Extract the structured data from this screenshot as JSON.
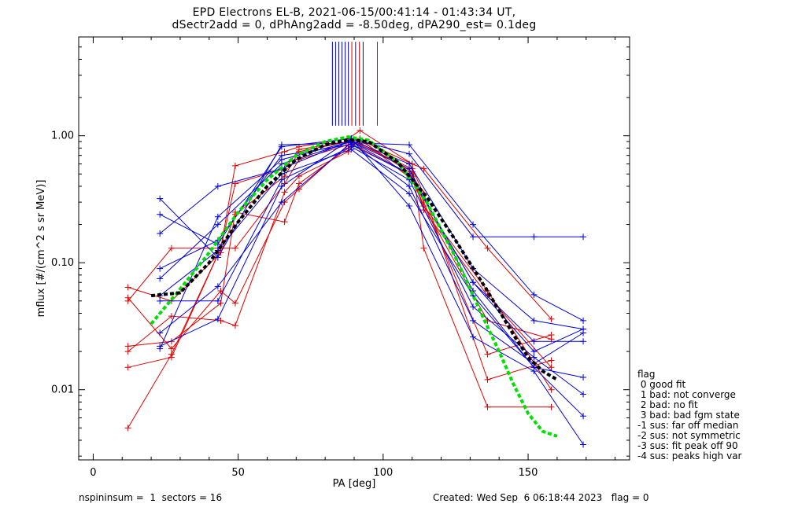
{
  "chart_data": {
    "type": "line",
    "title_line1": "EPD Electrons EL-B, 2021-06-15/00:41:14 - 01:43:34 UT,",
    "title_line2": "dSectr2add = 0, dPhAng2add = -8.50deg, dPA290_est=   0.1deg",
    "xlabel": "PA [deg]",
    "ylabel": "mflux [#/(cm^2 s sr MeV)]",
    "xlim": [
      -5,
      185
    ],
    "ylim": [
      0.0028,
      6.0
    ],
    "yscale": "log",
    "xticks": [
      0,
      50,
      100,
      150
    ],
    "xtick_labels": [
      "0",
      "50",
      "100",
      "150"
    ],
    "yticks": [
      0.01,
      0.1,
      1.0
    ],
    "ytick_labels": [
      "0.01",
      "0.10",
      "1.00"
    ],
    "colors": {
      "red": "#e00000",
      "blue": "#0000dd",
      "green": "#00e000",
      "black": "#000000"
    },
    "series": [
      {
        "color": "red",
        "x": [
          12,
          27,
          44,
          49,
          66,
          71,
          88,
          92,
          110,
          114,
          136,
          158
        ],
        "y": [
          0.005,
          0.019,
          0.13,
          0.58,
          0.75,
          0.82,
          0.95,
          1.1,
          0.6,
          0.13,
          0.0073,
          0.0073
        ]
      },
      {
        "color": "red",
        "x": [
          12,
          27,
          44,
          49,
          66,
          71,
          88,
          92,
          110,
          114,
          136,
          158
        ],
        "y": [
          0.015,
          0.018,
          0.13,
          0.42,
          0.55,
          0.78,
          0.9,
          0.85,
          0.55,
          0.35,
          0.012,
          0.017
        ]
      },
      {
        "color": "red",
        "x": [
          12,
          27,
          44,
          49,
          66,
          71,
          88,
          92,
          110,
          114,
          136,
          158
        ],
        "y": [
          0.022,
          0.024,
          0.048,
          0.25,
          0.21,
          0.42,
          0.8,
          0.92,
          0.5,
          0.3,
          0.019,
          0.027
        ]
      },
      {
        "color": "red",
        "x": [
          12,
          27,
          44,
          49,
          66,
          71,
          88,
          92,
          110,
          114,
          136,
          158
        ],
        "y": [
          0.02,
          0.038,
          0.035,
          0.032,
          0.36,
          0.48,
          0.75,
          0.95,
          0.45,
          0.28,
          0.035,
          0.025
        ]
      },
      {
        "color": "red",
        "x": [
          12,
          27,
          44,
          49,
          66,
          71,
          88,
          92,
          110,
          114,
          136,
          158
        ],
        "y": [
          0.05,
          0.13,
          0.13,
          0.13,
          0.42,
          0.65,
          0.85,
          0.88,
          0.52,
          0.26,
          0.055,
          0.015
        ]
      },
      {
        "color": "red",
        "x": [
          12,
          27,
          44,
          49,
          66,
          71,
          88,
          92,
          110,
          114,
          136,
          158
        ],
        "y": [
          0.064,
          0.05,
          0.12,
          0.24,
          0.48,
          0.75,
          0.9,
          0.93,
          0.6,
          0.55,
          0.13,
          0.036
        ]
      },
      {
        "color": "red",
        "x": [
          12,
          27,
          44,
          49,
          66,
          71,
          88,
          92,
          110,
          114,
          136,
          158
        ],
        "y": [
          0.053,
          0.021,
          0.06,
          0.048,
          0.3,
          0.38,
          0.85,
          0.8,
          0.48,
          0.28,
          0.06,
          0.01
        ]
      },
      {
        "color": "blue",
        "x": [
          23,
          43,
          65,
          89,
          109,
          131,
          152,
          169
        ],
        "y": [
          0.32,
          0.11,
          0.85,
          0.88,
          0.85,
          0.2,
          0.056,
          0.035
        ]
      },
      {
        "color": "blue",
        "x": [
          23,
          43,
          65,
          89,
          109,
          131,
          152,
          169
        ],
        "y": [
          0.24,
          0.14,
          0.82,
          0.95,
          0.72,
          0.16,
          0.16,
          0.16
        ]
      },
      {
        "color": "blue",
        "x": [
          23,
          43,
          65,
          89,
          109,
          131,
          152,
          169
        ],
        "y": [
          0.17,
          0.4,
          0.55,
          0.92,
          0.6,
          0.09,
          0.035,
          0.03
        ]
      },
      {
        "color": "blue",
        "x": [
          23,
          43,
          65,
          89,
          109,
          131,
          152,
          169
        ],
        "y": [
          0.09,
          0.15,
          0.7,
          0.85,
          0.5,
          0.07,
          0.024,
          0.024
        ]
      },
      {
        "color": "blue",
        "x": [
          23,
          43,
          65,
          89,
          109,
          131,
          152,
          169
        ],
        "y": [
          0.075,
          0.2,
          0.6,
          0.9,
          0.55,
          0.06,
          0.015,
          0.0125
        ]
      },
      {
        "color": "blue",
        "x": [
          23,
          43,
          65,
          89,
          109,
          131,
          152,
          169
        ],
        "y": [
          0.05,
          0.05,
          0.45,
          0.82,
          0.45,
          0.045,
          0.018,
          0.0092
        ]
      },
      {
        "color": "blue",
        "x": [
          23,
          43,
          65,
          89,
          109,
          131,
          152,
          169
        ],
        "y": [
          0.055,
          0.125,
          0.5,
          0.78,
          0.35,
          0.055,
          0.015,
          0.0062
        ]
      },
      {
        "color": "blue",
        "x": [
          23,
          43,
          65,
          89,
          109,
          131,
          152,
          169
        ],
        "y": [
          0.022,
          0.036,
          0.4,
          0.95,
          0.28,
          0.026,
          0.014,
          0.0037
        ]
      },
      {
        "color": "blue",
        "x": [
          23,
          43,
          65,
          89,
          109,
          131,
          152,
          169
        ],
        "y": [
          0.028,
          0.065,
          0.3,
          0.88,
          0.4,
          0.035,
          0.016,
          0.028
        ]
      },
      {
        "color": "blue",
        "x": [
          23,
          43,
          65,
          89,
          109,
          131,
          152,
          169
        ],
        "y": [
          0.021,
          0.23,
          0.65,
          0.9,
          0.5,
          0.07,
          0.02,
          0.03
        ]
      },
      {
        "color": "green",
        "dashed": true,
        "x": [
          20,
          30,
          40,
          50,
          60,
          70,
          80,
          88,
          95,
          105,
          115,
          125,
          135,
          140,
          145,
          150,
          155,
          160
        ],
        "y": [
          0.033,
          0.062,
          0.12,
          0.25,
          0.45,
          0.7,
          0.9,
          0.98,
          0.92,
          0.62,
          0.3,
          0.11,
          0.035,
          0.02,
          0.011,
          0.0065,
          0.0047,
          0.0043
        ]
      },
      {
        "color": "black",
        "dashed": true,
        "x": [
          20,
          30,
          40,
          50,
          60,
          70,
          80,
          88,
          95,
          105,
          115,
          125,
          135,
          140,
          145,
          150,
          155,
          160
        ],
        "y": [
          0.055,
          0.058,
          0.1,
          0.21,
          0.4,
          0.65,
          0.85,
          0.93,
          0.9,
          0.62,
          0.33,
          0.15,
          0.065,
          0.042,
          0.027,
          0.018,
          0.014,
          0.012
        ]
      }
    ],
    "marker_lines": [
      {
        "color": "blue",
        "x": 82.5
      },
      {
        "color": "blue",
        "x": 83.6
      },
      {
        "color": "blue",
        "x": 84.7
      },
      {
        "color": "blue",
        "x": 85.8
      },
      {
        "color": "blue",
        "x": 86.9
      },
      {
        "color": "blue",
        "x": 88.0
      },
      {
        "color": "red",
        "x": 89.2
      },
      {
        "color": "blue",
        "x": 90.5
      },
      {
        "color": "red",
        "x": 91.8
      },
      {
        "color": "blue",
        "x": 93.1
      },
      {
        "color": "red",
        "x": 98.0
      }
    ],
    "marker_line_range": [
      1.2,
      5.5
    ]
  },
  "legend": {
    "heading": "flag",
    "items": [
      " 0 good fit",
      " 1 bad: not converge",
      " 2 bad: no fit",
      " 3 bad: bad fgm state",
      "-1 sus: far off median",
      "-2 sus: not symmetric",
      "-3 sus: fit peak off 90",
      "-4 sus: peaks high var"
    ]
  },
  "footer": {
    "left": "nspininsum =  1  sectors = 16",
    "right": "Created: Wed Sep  6 06:18:44 2023   flag = 0"
  }
}
